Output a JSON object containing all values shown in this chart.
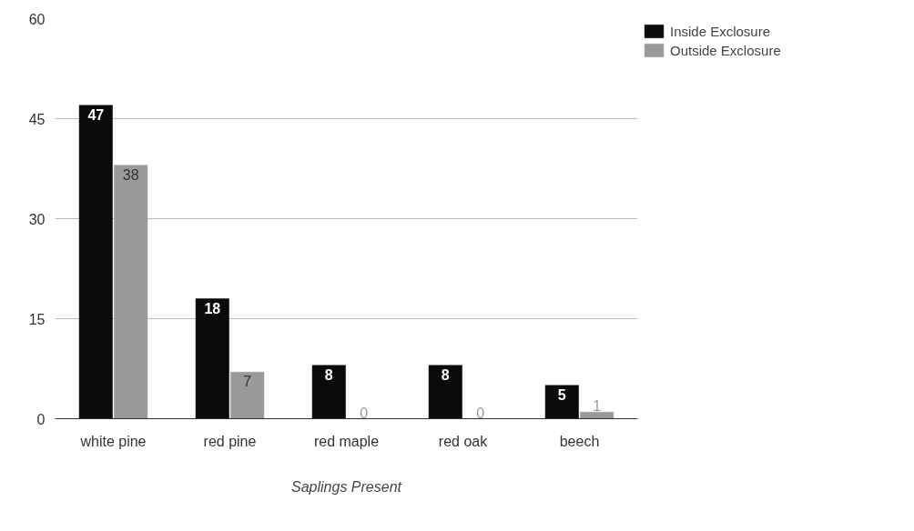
{
  "chart_data": {
    "type": "bar",
    "xlabel": "Saplings Present",
    "categories": [
      "white pine",
      "red pine",
      "red maple",
      "red oak",
      "beech"
    ],
    "series": [
      {
        "name": "Inside Exclosure",
        "color": "#0a0a0a",
        "values": [
          47,
          18,
          8,
          8,
          5
        ]
      },
      {
        "name": "Outside Exclosure",
        "color": "#9a9a9a",
        "values": [
          38,
          7,
          0,
          0,
          1
        ]
      }
    ],
    "ylim": [
      0,
      60
    ],
    "yticks": [
      0,
      15,
      30,
      45,
      60
    ],
    "grid": "y",
    "legend": "top right",
    "data_labels": true
  }
}
